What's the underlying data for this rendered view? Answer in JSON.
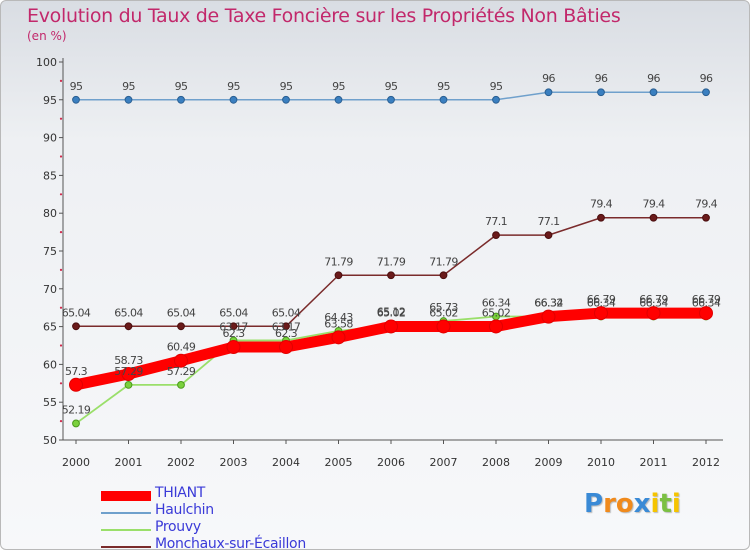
{
  "chart_data": {
    "type": "line",
    "title": "Evolution du Taux de Taxe Foncière sur les Propriétés Non Bâties",
    "ylabel": "(en %)",
    "xlabel": "",
    "x": [
      "2000",
      "2001",
      "2002",
      "2003",
      "2004",
      "2005",
      "2006",
      "2007",
      "2008",
      "2009",
      "2010",
      "2011",
      "2012"
    ],
    "ylim": [
      50,
      100
    ],
    "yticks": [
      "50",
      "55",
      "60",
      "65",
      "70",
      "75",
      "80",
      "85",
      "90",
      "95",
      "100"
    ],
    "grid": false,
    "legend_position": "bottom-left",
    "series": [
      {
        "name": "THIANT",
        "color": "#ff0000",
        "values": [
          57.3,
          58.73,
          60.49,
          62.3,
          62.3,
          63.58,
          65.02,
          65.02,
          65.02,
          66.32,
          66.79,
          66.79,
          66.79
        ],
        "labels": [
          "57.3",
          "58.73",
          "60.49",
          "62.3",
          "62.3",
          "63.58",
          "65.02",
          "65.02",
          "65.02",
          "66.32",
          "66.79",
          "66.79",
          "66.79"
        ]
      },
      {
        "name": "Haulchin",
        "color": "#6fa0cc",
        "values": [
          95,
          95,
          95,
          95,
          95,
          95,
          95,
          95,
          95,
          96,
          96,
          96,
          96
        ],
        "labels": [
          "95",
          "95",
          "95",
          "95",
          "95",
          "95",
          "95",
          "95",
          "95",
          "96",
          "96",
          "96",
          "96"
        ]
      },
      {
        "name": "Prouvy",
        "color": "#9adf6a",
        "values": [
          52.19,
          57.29,
          57.29,
          63.17,
          63.17,
          64.43,
          65.12,
          65.73,
          66.34,
          66.34,
          66.34,
          66.34,
          66.34
        ],
        "labels": [
          "52.19",
          "57.29",
          "57.29",
          "63.17",
          "63.17",
          "64.43",
          "65.12",
          "65.73",
          "66.34",
          "66.34",
          "66.34",
          "66.34",
          "66.34"
        ]
      },
      {
        "name": "Monchaux-sur-Écaillon",
        "color": "#7a2b2b",
        "values": [
          65.04,
          65.04,
          65.04,
          65.04,
          65.04,
          71.79,
          71.79,
          71.79,
          77.1,
          77.1,
          79.4,
          79.4,
          79.4
        ],
        "labels": [
          "65.04",
          "65.04",
          "65.04",
          "65.04",
          "65.04",
          "71.79",
          "71.79",
          "71.79",
          "77.1",
          "77.1",
          "79.4",
          "79.4",
          "79.4"
        ]
      }
    ]
  },
  "brand": {
    "letters": [
      "P",
      "r",
      "o",
      "x",
      "i",
      "t",
      "i"
    ],
    "colors": [
      "#3a8ad6",
      "#f08a1c",
      "#f08a1c",
      "#3a8ad6",
      "#f5c400",
      "#7bc043",
      "#f5c400"
    ]
  }
}
